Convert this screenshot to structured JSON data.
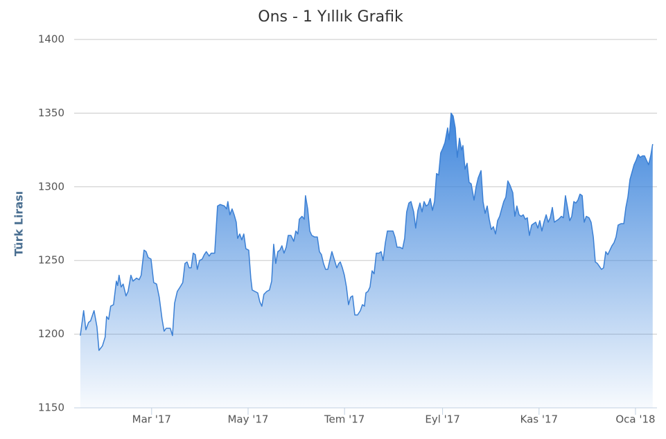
{
  "chart_data": {
    "type": "area",
    "title": "Ons - 1 Yıllık Grafik",
    "y_label": "Türk Lirası",
    "color": "#3a7fd4",
    "grid": true,
    "x": [
      13.9,
      16.0,
      17.4,
      19.1,
      20.4,
      22.6,
      24.4,
      25.7,
      27.9,
      29.6,
      30.5,
      31.8,
      33.1,
      34.9,
      36.7,
      37.5,
      38.4,
      39.7,
      41.0,
      42.8,
      44.1,
      45.9,
      47.2,
      49.4,
      51.1,
      52.4,
      54.2,
      55.5,
      56.8,
      58.6,
      60.3,
      62.1,
      63.8,
      65.6,
      66.9,
      68.2,
      70.8,
      72.2,
      73.5,
      75.2,
      77.0,
      78.7,
      80.1,
      81.4,
      82.7,
      84.0,
      85.3,
      86.6,
      87.9,
      89.3,
      91.0,
      92.3,
      93.6,
      95.4,
      96.7,
      98.9,
      100.7,
      102.4,
      105.0,
      106.4,
      107.2,
      108.5,
      109.9,
      111.2,
      112.5,
      113.4,
      114.7,
      116.0,
      117.3,
      118.6,
      120.4,
      121.7,
      122.6,
      124.3,
      126.1,
      127.4,
      128.7,
      130.0,
      131.8,
      133.5,
      134.9,
      136.2,
      137.5,
      138.8,
      140.1,
      141.4,
      142.7,
      144.1,
      145.4,
      147.1,
      148.9,
      150.2,
      151.5,
      152.4,
      154.1,
      155.5,
      156.3,
      157.7,
      159.0,
      160.3,
      162.0,
      163.8,
      165.1,
      166.4,
      167.7,
      169.0,
      170.4,
      171.7,
      173.0,
      174.7,
      176.1,
      177.4,
      178.3,
      179.6,
      180.9,
      182.2,
      183.5,
      184.8,
      186.1,
      187.5,
      189.2,
      191.0,
      192.3,
      193.6,
      194.5,
      195.8,
      197.1,
      198.4,
      199.7,
      201.1,
      202.8,
      204.1,
      205.4,
      206.8,
      208.1,
      209.8,
      211.6,
      212.9,
      214.2,
      216.0,
      217.7,
      219.0,
      220.3,
      221.7,
      223.0,
      224.7,
      226.0,
      227.4,
      228.7,
      230.0,
      231.3,
      232.6,
      233.9,
      235.2,
      236.6,
      237.9,
      239.2,
      240.5,
      241.8,
      243.1,
      244.5,
      246.2,
      247.1,
      248.4,
      249.7,
      251.0,
      252.3,
      253.7,
      255.0,
      255.9,
      257.2,
      258.5,
      259.8,
      261.1,
      262.9,
      264.2,
      265.5,
      267.3,
      268.6,
      269.9,
      271.2,
      272.5,
      273.8,
      275.1,
      276.5,
      277.8,
      279.1,
      280.4,
      281.7,
      283.0,
      284.3,
      285.7,
      287.4,
      288.7,
      290.0,
      291.4,
      292.7,
      294.0,
      295.3,
      296.6,
      297.9,
      299.3,
      300.6,
      301.9,
      303.2,
      304.5,
      305.8,
      307.1,
      308.5,
      309.8,
      311.1,
      312.4,
      313.7,
      315.0,
      316.4,
      318.1,
      319.4,
      320.7,
      322.0,
      323.4,
      324.7,
      326.0,
      327.3,
      328.6,
      329.9,
      331.3,
      332.6,
      333.9,
      335.6,
      336.9,
      338.3,
      339.6,
      340.9,
      342.2,
      343.5,
      344.8,
      346.2,
      347.5,
      348.8,
      350.1,
      351.4,
      352.7,
      354.0,
      355.8,
      357.6,
      358.9,
      360.2,
      361.5,
      362.8,
      364.1,
      365.4,
      366.7,
      368.0,
      369.4,
      370.7,
      372.0,
      373.3,
      374.6,
      375.9
    ],
    "values": [
      1199,
      1216,
      1203,
      1208,
      1209,
      1216,
      1205,
      1189,
      1192,
      1198,
      1212,
      1210,
      1219,
      1220,
      1236,
      1233,
      1240,
      1232,
      1234,
      1226,
      1229,
      1240,
      1236,
      1238,
      1237,
      1240,
      1257,
      1256,
      1252,
      1251,
      1235,
      1234,
      1225,
      1210,
      1202,
      1204,
      1204,
      1199,
      1221,
      1229,
      1232,
      1235,
      1248,
      1249,
      1245,
      1245,
      1255,
      1254,
      1244,
      1250,
      1251,
      1254,
      1256,
      1253,
      1255,
      1255,
      1287,
      1288,
      1287,
      1285,
      1290,
      1281,
      1285,
      1281,
      1276,
      1265,
      1268,
      1264,
      1268,
      1258,
      1257,
      1238,
      1230,
      1229,
      1228,
      1222,
      1219,
      1227,
      1229,
      1230,
      1236,
      1261,
      1248,
      1256,
      1257,
      1260,
      1255,
      1259,
      1267,
      1267,
      1263,
      1270,
      1268,
      1278,
      1280,
      1278,
      1294,
      1285,
      1270,
      1267,
      1266,
      1266,
      1256,
      1254,
      1248,
      1244,
      1244,
      1250,
      1256,
      1250,
      1245,
      1248,
      1249,
      1245,
      1240,
      1232,
      1220,
      1225,
      1226,
      1213,
      1213,
      1216,
      1220,
      1219,
      1228,
      1229,
      1232,
      1243,
      1241,
      1255,
      1255,
      1256,
      1250,
      1262,
      1270,
      1270,
      1270,
      1266,
      1259,
      1259,
      1258,
      1265,
      1283,
      1289,
      1290,
      1283,
      1272,
      1284,
      1289,
      1283,
      1290,
      1287,
      1288,
      1292,
      1284,
      1290,
      1309,
      1308,
      1323,
      1326,
      1330,
      1340,
      1332,
      1350,
      1348,
      1340,
      1320,
      1333,
      1325,
      1328,
      1312,
      1316,
      1303,
      1302,
      1291,
      1300,
      1306,
      1311,
      1290,
      1282,
      1287,
      1278,
      1271,
      1273,
      1268,
      1277,
      1280,
      1285,
      1290,
      1293,
      1304,
      1301,
      1296,
      1280,
      1287,
      1281,
      1280,
      1281,
      1278,
      1279,
      1267,
      1274,
      1275,
      1276,
      1272,
      1277,
      1270,
      1276,
      1281,
      1276,
      1279,
      1286,
      1276,
      1277,
      1278,
      1280,
      1279,
      1294,
      1286,
      1277,
      1280,
      1290,
      1289,
      1291,
      1295,
      1294,
      1276,
      1280,
      1279,
      1276,
      1266,
      1249,
      1248,
      1246,
      1244,
      1245,
      1256,
      1254,
      1257,
      1260,
      1262,
      1266,
      1274,
      1275,
      1275,
      1286,
      1293,
      1305,
      1310,
      1315,
      1318,
      1322,
      1320,
      1321,
      1321,
      1318,
      1315,
      1321,
      1329
    ],
    "xlim": [
      10,
      378.6
    ],
    "xticks": [
      {
        "value": 59,
        "label": "Mar '17"
      },
      {
        "value": 120,
        "label": "May '17"
      },
      {
        "value": 181,
        "label": "Tem '17"
      },
      {
        "value": 243,
        "label": "Eyl '17"
      },
      {
        "value": 304,
        "label": "Kas '17"
      },
      {
        "value": 365,
        "label": "Oca '18"
      }
    ],
    "ylim": [
      1150,
      1400
    ],
    "yticks": [
      1150,
      1200,
      1250,
      1300,
      1350,
      1400
    ]
  }
}
